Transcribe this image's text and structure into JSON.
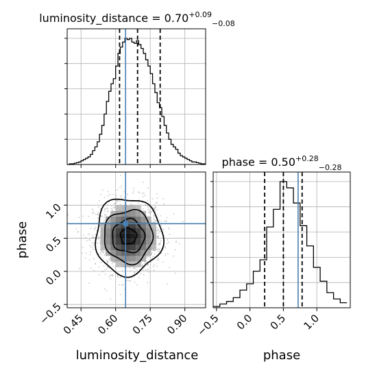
{
  "chart_data": {
    "type": "corner",
    "parameters": [
      "luminosity_distance",
      "phase"
    ],
    "truth": {
      "luminosity_distance": 0.643,
      "phase": 0.72
    },
    "marginals": [
      {
        "name": "luminosity_distance",
        "title": {
          "main": "luminosity_distance = 0.70",
          "plus": "+0.09",
          "minus": "−0.08"
        },
        "xlim": [
          0.39,
          0.99
        ],
        "quantiles": [
          0.617,
          0.695,
          0.793
        ],
        "bin_edges": [
          0.39,
          0.4,
          0.41,
          0.42,
          0.43,
          0.44,
          0.45,
          0.46,
          0.47,
          0.48,
          0.49,
          0.5,
          0.51,
          0.52,
          0.53,
          0.54,
          0.55,
          0.56,
          0.57,
          0.58,
          0.59,
          0.6,
          0.61,
          0.62,
          0.63,
          0.64,
          0.65,
          0.66,
          0.67,
          0.68,
          0.69,
          0.7,
          0.71,
          0.72,
          0.73,
          0.74,
          0.75,
          0.76,
          0.77,
          0.78,
          0.79,
          0.8,
          0.81,
          0.82,
          0.83,
          0.84,
          0.85,
          0.86,
          0.87,
          0.88,
          0.89,
          0.9,
          0.91,
          0.92,
          0.93,
          0.94,
          0.95,
          0.96,
          0.97,
          0.98,
          0.99
        ],
        "counts": [
          0,
          0.5,
          0.5,
          1,
          1.5,
          2,
          3,
          4,
          5,
          6,
          8,
          11,
          14,
          18,
          24,
          31,
          40,
          50,
          58,
          64,
          68,
          78,
          88,
          93,
          97,
          100,
          99,
          100,
          97,
          96,
          98,
          95,
          92,
          88,
          83,
          78,
          72,
          64,
          57,
          49,
          45,
          38,
          31,
          25,
          20,
          16,
          14,
          12,
          9,
          7,
          6,
          5,
          4,
          3,
          2,
          2,
          1.5,
          1,
          0.5,
          0.5
        ],
        "xticks": [
          0.45,
          0.6,
          0.75,
          0.9
        ],
        "xtick_labels": [
          "0.45",
          "0.60",
          "0.75",
          "0.90"
        ]
      },
      {
        "name": "phase",
        "title": {
          "main": "phase = 0.50",
          "plus": "+0.28",
          "minus": "−0.28"
        },
        "xlim": [
          -0.55,
          1.5
        ],
        "quantiles": [
          0.22,
          0.5,
          0.78
        ],
        "bin_edges": [
          -0.55,
          -0.45,
          -0.35,
          -0.25,
          -0.15,
          -0.05,
          0.05,
          0.15,
          0.25,
          0.35,
          0.45,
          0.55,
          0.65,
          0.75,
          0.85,
          0.95,
          1.05,
          1.15,
          1.25,
          1.35,
          1.45
        ],
        "counts": [
          1,
          3,
          5,
          8,
          14,
          19,
          29,
          38,
          64,
          78,
          100,
          95,
          83,
          65,
          49,
          32,
          21,
          12,
          7,
          4
        ],
        "xticks": [
          -0.5,
          0.0,
          0.5,
          1.0
        ],
        "xtick_labels": [
          "−0.5",
          "0.0",
          "0.5",
          "1.0"
        ]
      }
    ],
    "joint": {
      "x": "luminosity_distance",
      "y": "phase",
      "xlim": [
        0.39,
        0.99
      ],
      "ylim": [
        -0.55,
        1.5
      ],
      "center": {
        "x": 0.655,
        "y": 0.53
      },
      "contours": [
        {
          "rx": 0.035,
          "ry": 0.12
        },
        {
          "rx": 0.07,
          "ry": 0.25
        },
        {
          "rx": 0.105,
          "ry": 0.4
        },
        {
          "rx": 0.145,
          "ry": 0.58
        }
      ],
      "xticks": [
        0.45,
        0.6,
        0.75,
        0.9
      ],
      "xtick_labels": [
        "0.45",
        "0.60",
        "0.75",
        "0.90"
      ],
      "yticks": [
        -0.5,
        0.0,
        0.5,
        1.0
      ],
      "ytick_labels": [
        "−0.5",
        "0.0",
        "0.5",
        "1.0"
      ],
      "xlabel": "luminosity_distance",
      "ylabel": "phase"
    },
    "grid": true,
    "colors": {
      "truth": "#4a7fb0",
      "line": "#000000",
      "grid": "#b0b0b0",
      "scatter": "#9a9a9a"
    }
  }
}
